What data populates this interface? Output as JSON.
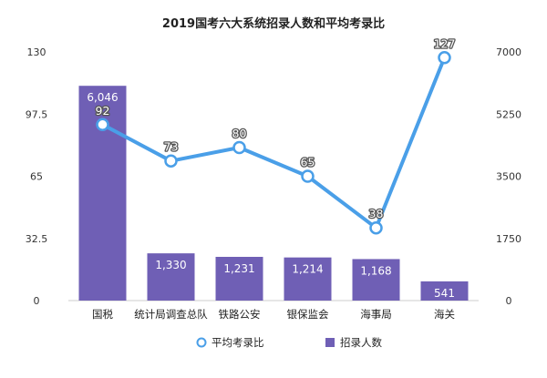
{
  "chart_data": {
    "type": "bar+line",
    "title": "2019国考六大系统招录人数和平均考录比",
    "categories": [
      "国税",
      "统计局调查总队",
      "铁路公安",
      "银保监会",
      "海事局",
      "海关"
    ],
    "series": [
      {
        "name": "招录人数",
        "type": "bar",
        "axis": "right",
        "values": [
          6046,
          1330,
          1231,
          1214,
          1168,
          541
        ],
        "labels": [
          "6,046",
          "1,330",
          "1,231",
          "1,214",
          "1,168",
          "541"
        ],
        "color": "#6f5fb5"
      },
      {
        "name": "平均考录比",
        "type": "line",
        "axis": "left",
        "values": [
          92,
          73,
          80,
          65,
          38,
          127
        ],
        "labels": [
          "92",
          "73",
          "80",
          "65",
          "38",
          "127"
        ],
        "color": "#4a9fe8"
      }
    ],
    "left_axis": {
      "ylim": [
        0,
        130
      ],
      "ticks": [
        "0",
        "32.5",
        "65",
        "97.5",
        "130"
      ]
    },
    "right_axis": {
      "ylim": [
        0,
        7000
      ],
      "ticks": [
        "0",
        "1750",
        "3500",
        "5250",
        "7000"
      ]
    },
    "grid": false,
    "legend_position": "bottom"
  }
}
